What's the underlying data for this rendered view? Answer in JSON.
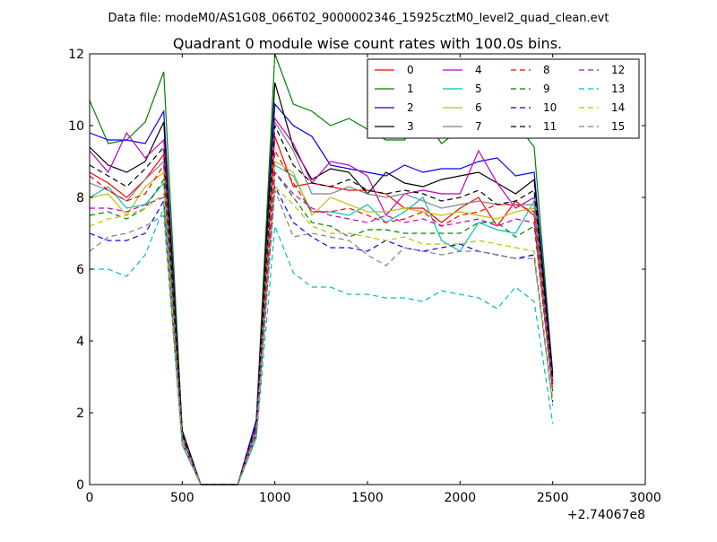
{
  "chart_data": {
    "type": "line",
    "suptitle": "Data file: modeM0/AS1G08_066T02_9000002346_15925cztM0_level2_quad_clean.evt",
    "title": "Quadrant 0 module wise count rates with 100.0s bins.",
    "xlabel": "",
    "ylabel": "",
    "x_offset_label": "+2.74067e8",
    "xlim": [
      0,
      3000
    ],
    "ylim": [
      0,
      12
    ],
    "xticks": [
      0,
      500,
      1000,
      1500,
      2000,
      2500,
      3000
    ],
    "yticks": [
      0,
      2,
      4,
      6,
      8,
      10,
      12
    ],
    "grid": false,
    "legend_position": "top-right",
    "legend_columns": 4,
    "x": [
      0,
      100,
      200,
      300,
      400,
      500,
      600,
      700,
      800,
      900,
      1000,
      1100,
      1200,
      1300,
      1400,
      1500,
      1600,
      1700,
      1800,
      1900,
      2000,
      2100,
      2200,
      2300,
      2400,
      2500
    ],
    "series": [
      {
        "name": "0",
        "color": "#ff0000",
        "dash": "solid",
        "values": [
          8.7,
          8.4,
          8.0,
          8.5,
          9.2,
          1.3,
          0,
          0,
          0,
          1.6,
          9.7,
          8.3,
          8.4,
          8.3,
          8.2,
          8.2,
          8.1,
          7.7,
          7.7,
          7.3,
          7.7,
          8.0,
          7.2,
          7.9,
          7.5,
          2.9
        ]
      },
      {
        "name": "1",
        "color": "#008000",
        "dash": "solid",
        "values": [
          10.7,
          9.5,
          9.6,
          10.1,
          11.5,
          1.5,
          0,
          0,
          0,
          1.8,
          12.0,
          10.6,
          10.4,
          10.0,
          10.2,
          9.9,
          9.6,
          9.6,
          10.3,
          9.5,
          9.9,
          9.8,
          10.2,
          10.1,
          9.4,
          3.1
        ]
      },
      {
        "name": "2",
        "color": "#0000ff",
        "dash": "solid",
        "values": [
          9.8,
          9.6,
          9.6,
          9.5,
          10.4,
          1.5,
          0,
          0,
          0,
          1.8,
          10.6,
          10.0,
          9.7,
          8.9,
          8.8,
          8.7,
          8.6,
          8.9,
          8.7,
          8.8,
          8.8,
          9.0,
          9.1,
          8.6,
          8.7,
          3.1
        ]
      },
      {
        "name": "3",
        "color": "#000000",
        "dash": "solid",
        "values": [
          9.4,
          8.9,
          8.7,
          9.0,
          10.1,
          1.5,
          0,
          0,
          0,
          1.7,
          11.2,
          9.4,
          8.5,
          8.8,
          8.7,
          8.1,
          8.7,
          8.4,
          8.3,
          8.5,
          8.6,
          8.7,
          8.4,
          8.1,
          8.5,
          3.0
        ]
      },
      {
        "name": "4",
        "color": "#bf00bf",
        "dash": "solid",
        "values": [
          9.3,
          8.7,
          9.8,
          9.1,
          9.6,
          1.4,
          0,
          0,
          0,
          1.7,
          10.2,
          9.5,
          8.4,
          9.0,
          8.9,
          8.6,
          7.5,
          8.1,
          8.2,
          8.1,
          8.1,
          9.3,
          8.4,
          7.7,
          8.0,
          2.9
        ]
      },
      {
        "name": "5",
        "color": "#00bfbf",
        "dash": "solid",
        "values": [
          8.0,
          8.3,
          7.7,
          7.8,
          8.4,
          1.3,
          0,
          0,
          0,
          1.5,
          8.9,
          8.6,
          7.6,
          7.6,
          7.5,
          7.8,
          7.3,
          7.6,
          8.0,
          6.8,
          6.5,
          7.3,
          7.1,
          7.0,
          7.9,
          2.6
        ]
      },
      {
        "name": "6",
        "color": "#bfbf00",
        "dash": "solid",
        "values": [
          8.0,
          8.1,
          7.5,
          8.3,
          8.7,
          1.3,
          0,
          0,
          0,
          1.6,
          9.0,
          8.7,
          7.5,
          8.0,
          7.8,
          7.6,
          7.6,
          7.7,
          7.6,
          7.5,
          7.6,
          7.5,
          7.4,
          7.6,
          7.7,
          2.7
        ]
      },
      {
        "name": "7",
        "color": "#808080",
        "dash": "solid",
        "values": [
          8.4,
          8.2,
          7.9,
          8.5,
          9.0,
          1.4,
          0,
          0,
          0,
          1.6,
          10.1,
          9.3,
          8.1,
          8.1,
          8.3,
          8.1,
          8.0,
          8.1,
          7.9,
          7.7,
          7.8,
          7.9,
          7.8,
          7.8,
          7.8,
          2.8
        ]
      },
      {
        "name": "8",
        "color": "#ff0000",
        "dash": "dashed",
        "values": [
          8.6,
          8.2,
          7.9,
          8.1,
          8.9,
          1.3,
          0,
          0,
          0,
          1.6,
          9.3,
          8.4,
          7.6,
          7.6,
          7.7,
          7.5,
          7.3,
          7.4,
          7.6,
          7.2,
          7.5,
          7.6,
          7.8,
          7.8,
          7.6,
          2.8
        ]
      },
      {
        "name": "9",
        "color": "#008000",
        "dash": "dashed",
        "values": [
          7.5,
          7.6,
          7.4,
          7.7,
          8.5,
          1.3,
          0,
          0,
          0,
          1.5,
          8.7,
          8.0,
          7.3,
          7.2,
          6.9,
          7.1,
          7.1,
          7.0,
          7.0,
          7.0,
          7.0,
          7.3,
          7.3,
          6.9,
          7.2,
          2.6
        ]
      },
      {
        "name": "10",
        "color": "#0000ff",
        "dash": "dashed",
        "values": [
          7.0,
          6.8,
          6.8,
          7.0,
          7.9,
          1.2,
          0,
          0,
          0,
          1.4,
          8.3,
          7.3,
          6.9,
          6.6,
          6.6,
          6.5,
          6.8,
          6.6,
          6.5,
          6.6,
          6.7,
          6.5,
          6.4,
          6.3,
          6.4,
          2.3
        ]
      },
      {
        "name": "11",
        "color": "#000000",
        "dash": "dashed",
        "values": [
          8.9,
          8.6,
          8.3,
          8.8,
          9.4,
          1.4,
          0,
          0,
          0,
          1.7,
          10.0,
          8.9,
          8.4,
          8.3,
          8.5,
          8.2,
          8.1,
          8.2,
          8.1,
          7.9,
          8.0,
          8.2,
          7.8,
          7.9,
          8.2,
          2.9
        ]
      },
      {
        "name": "12",
        "color": "#bf00bf",
        "dash": "dashed",
        "values": [
          7.7,
          7.7,
          7.6,
          7.8,
          8.0,
          1.3,
          0,
          0,
          0,
          1.6,
          8.7,
          8.1,
          7.7,
          7.5,
          7.4,
          7.3,
          7.5,
          7.3,
          7.4,
          7.2,
          7.3,
          7.4,
          7.2,
          7.4,
          7.3,
          2.6
        ]
      },
      {
        "name": "13",
        "color": "#00bfbf",
        "dash": "dashed",
        "values": [
          6.0,
          6.0,
          5.8,
          6.4,
          7.7,
          1.1,
          0,
          0,
          0,
          1.3,
          7.2,
          5.9,
          5.5,
          5.5,
          5.3,
          5.3,
          5.2,
          5.2,
          5.1,
          5.4,
          5.3,
          5.2,
          4.9,
          5.5,
          5.1,
          1.7
        ]
      },
      {
        "name": "14",
        "color": "#bfbf00",
        "dash": "dashed",
        "values": [
          7.2,
          7.4,
          7.5,
          7.7,
          8.1,
          1.2,
          0,
          0,
          0,
          1.4,
          8.3,
          7.8,
          7.2,
          7.0,
          7.0,
          6.9,
          6.8,
          6.9,
          6.7,
          6.7,
          6.7,
          6.8,
          6.7,
          6.6,
          6.5,
          2.4
        ]
      },
      {
        "name": "15",
        "color": "#808080",
        "dash": "dashed",
        "values": [
          6.5,
          6.9,
          7.0,
          7.2,
          7.5,
          1.1,
          0,
          0,
          0,
          1.3,
          8.2,
          6.9,
          7.0,
          6.9,
          6.8,
          6.4,
          6.1,
          6.6,
          6.5,
          6.4,
          6.5,
          6.5,
          6.4,
          6.3,
          6.3,
          2.2
        ]
      }
    ]
  }
}
